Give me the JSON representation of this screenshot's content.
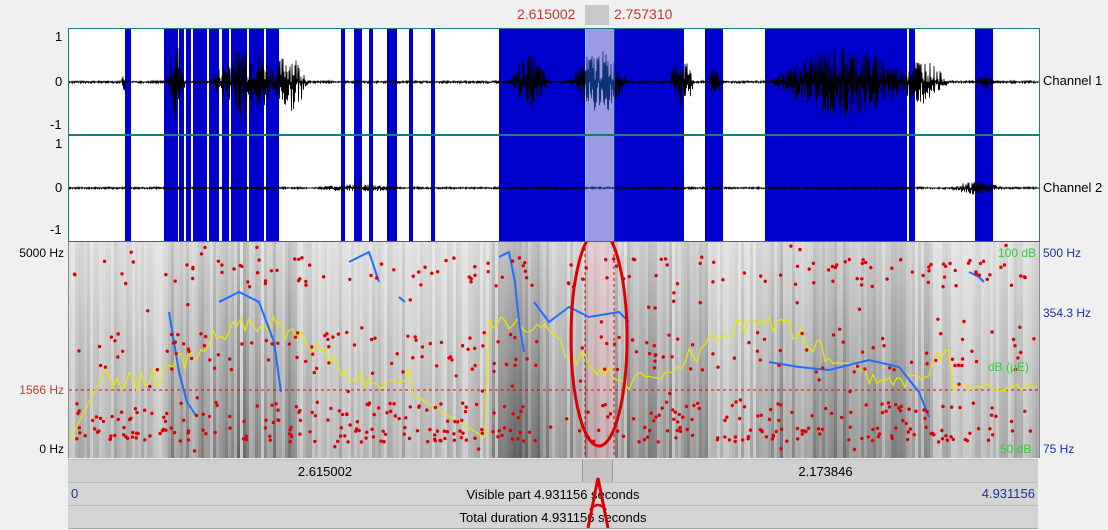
{
  "selection": {
    "start": "2.615002",
    "end": "2.757310"
  },
  "waveform": {
    "channels": [
      {
        "name": "Channel 1",
        "ticks": [
          "1",
          "0",
          "-1"
        ]
      },
      {
        "name": "Channel 2",
        "ticks": [
          "1",
          "0",
          "-1"
        ]
      }
    ]
  },
  "spectrogram": {
    "freq_top": "5000 Hz",
    "freq_cursor": "1566 Hz",
    "freq_bottom": "0 Hz",
    "pitch_top": "500 Hz",
    "pitch_mid": "354.3 Hz",
    "pitch_bottom": "75 Hz",
    "intensity_top": "100 dB",
    "intensity_mid": "dB (μE)",
    "intensity_bottom": "50 dB"
  },
  "time_bar": {
    "left_span": "2.615002",
    "right_span": "2.173846"
  },
  "visible_bar": {
    "start": "0",
    "label": "Visible part 4.931156 seconds",
    "end": "4.931156"
  },
  "total_bar": {
    "label": "Total duration 4.931156 seconds"
  },
  "colors": {
    "highlight": "#0000cc",
    "selection": "#ffc0cb",
    "formant": "#dd0000",
    "pitch": "#1e6fff",
    "intensity": "#e8e800",
    "intensity_label": "#33cc33",
    "pitch_label": "#1a3399"
  }
}
